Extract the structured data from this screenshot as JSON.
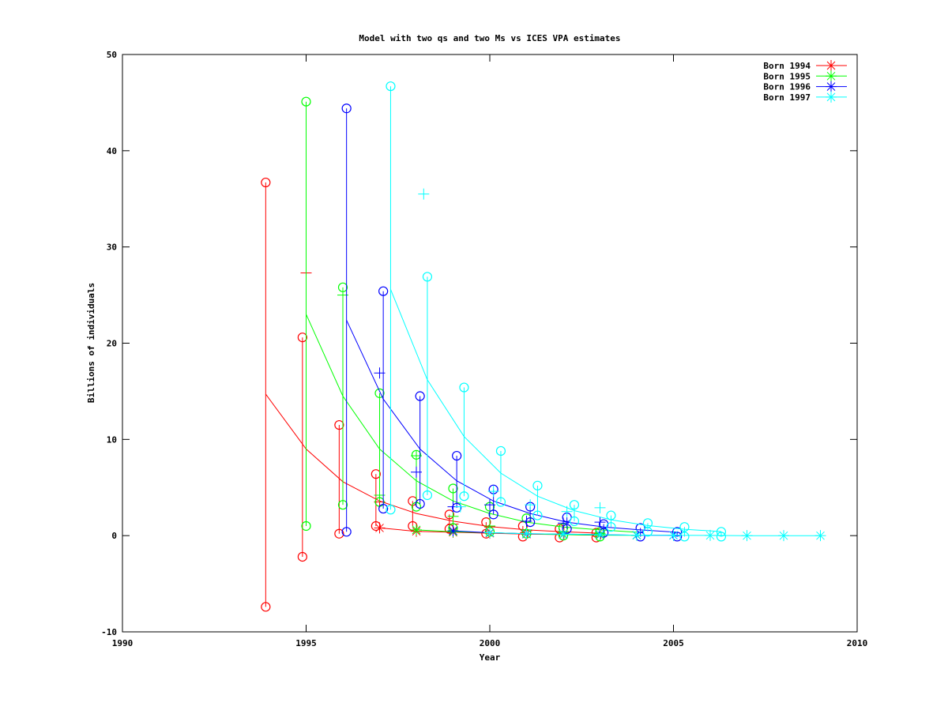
{
  "chart_data": {
    "type": "line",
    "title": "Model with two qs and two Ms vs ICES VPA estimates",
    "xlabel": "Year",
    "ylabel": "Billions of individuals",
    "xlim": [
      1990,
      2010
    ],
    "ylim": [
      -10,
      50
    ],
    "xticks": [
      1990,
      1995,
      2000,
      2005,
      2010
    ],
    "yticks": [
      -10,
      0,
      10,
      20,
      30,
      40,
      50
    ],
    "grid": false,
    "legend_position": "top-right",
    "series": [
      {
        "name": "Born 1994",
        "color": "#ff0000",
        "model": {
          "x": [
            1993.9,
            1995,
            1996,
            1997,
            1998,
            1999,
            2000,
            2001,
            2002,
            2003
          ],
          "y": [
            14.7,
            9.0,
            5.6,
            3.6,
            2.3,
            1.5,
            0.95,
            0.6,
            0.4,
            0.25
          ]
        },
        "asterisk_line": {
          "x": [
            1997,
            1998,
            1999,
            2000,
            2001,
            2002,
            2003
          ],
          "y": [
            0.8,
            0.45,
            0.35,
            0.25,
            0.15,
            0.1,
            0.05
          ]
        },
        "intervals": {
          "x": [
            1993.9,
            1994.9,
            1995.9,
            1996.9,
            1997.9,
            1998.9,
            1999.9,
            2000.9,
            2001.9,
            2002.9
          ],
          "low": [
            -7.4,
            -2.2,
            0.2,
            1.0,
            1.0,
            0.7,
            0.2,
            -0.1,
            -0.2,
            -0.2
          ],
          "high": [
            36.7,
            20.6,
            11.5,
            6.4,
            3.6,
            2.2,
            1.4,
            1.0,
            0.7,
            0.3
          ]
        },
        "vpa": {
          "x": [
            1995,
            1997,
            1999,
            2000,
            2001,
            2002
          ],
          "y": [
            27.3,
            3.5,
            1.2,
            0.9,
            0.5,
            0.4
          ]
        }
      },
      {
        "name": "Born 1995",
        "color": "#00ff00",
        "model": {
          "x": [
            1995,
            1996,
            1997,
            1998,
            1999,
            2000,
            2001,
            2002,
            2003,
            2004
          ],
          "y": [
            23.0,
            14.5,
            9.0,
            5.7,
            3.6,
            2.3,
            1.4,
            0.9,
            0.6,
            0.35
          ]
        },
        "asterisk_line": {
          "x": [
            1998,
            1999,
            2000,
            2001,
            2002,
            2003,
            2004
          ],
          "y": [
            0.6,
            0.4,
            0.3,
            0.2,
            0.1,
            0.05,
            0.03
          ]
        },
        "intervals": {
          "x": [
            1995,
            1996,
            1997,
            1998,
            1999,
            2000,
            2001,
            2002,
            2003
          ],
          "low": [
            1.0,
            3.2,
            3.5,
            3.0,
            0.8,
            0.4,
            0.2,
            0.0,
            -0.1
          ],
          "high": [
            45.1,
            25.8,
            14.8,
            8.4,
            4.9,
            3.0,
            1.8,
            0.8,
            0.4
          ]
        },
        "vpa": {
          "x": [
            1996,
            1997,
            1998,
            1999,
            2000,
            2001,
            2002,
            2003
          ],
          "y": [
            25.0,
            4.2,
            8.3,
            2.0,
            1.0,
            0.6,
            0.4,
            0.2
          ]
        }
      },
      {
        "name": "Born 1996",
        "color": "#0000ff",
        "model": {
          "x": [
            1996.1,
            1997.1,
            1998.1,
            1999.1,
            2000.1,
            2001.1,
            2002.1,
            2003.1,
            2004.1,
            2005.1
          ],
          "y": [
            22.4,
            14.2,
            9.0,
            5.7,
            3.6,
            2.3,
            1.4,
            0.9,
            0.6,
            0.35
          ]
        },
        "asterisk_line": {
          "x": [
            1999,
            2000,
            2001,
            2002,
            2003,
            2004,
            2005
          ],
          "y": [
            0.5,
            0.3,
            0.2,
            0.15,
            0.1,
            0.05,
            0.03
          ]
        },
        "intervals": {
          "x": [
            1996.1,
            1997.1,
            1998.1,
            1999.1,
            2000.1,
            2001.1,
            2002.1,
            2003.1,
            2004.1,
            2005.1
          ],
          "low": [
            0.4,
            2.8,
            3.3,
            2.9,
            2.2,
            1.4,
            0.7,
            0.3,
            -0.1,
            -0.1
          ],
          "high": [
            44.4,
            25.4,
            14.5,
            8.3,
            4.8,
            3.0,
            1.9,
            1.2,
            0.8,
            0.4
          ]
        },
        "vpa": {
          "x": [
            1997,
            1998,
            1999,
            2000,
            2001,
            2002,
            2003
          ],
          "y": [
            16.9,
            6.6,
            3.0,
            3.2,
            1.5,
            1.3,
            1.4
          ]
        }
      },
      {
        "name": "Born 1997",
        "color": "#00ffff",
        "model": {
          "x": [
            1997.3,
            1998.3,
            1999.3,
            2000.3,
            2001.3,
            2002.3,
            2003.3,
            2004.3,
            2005.3,
            2006.3
          ],
          "y": [
            25.6,
            16.2,
            10.3,
            6.5,
            4.1,
            2.6,
            1.65,
            1.05,
            0.66,
            0.42
          ]
        },
        "asterisk_line": {
          "x": [
            2000,
            2001,
            2002,
            2003,
            2004,
            2005,
            2006,
            2007,
            2008,
            2009
          ],
          "y": [
            0.3,
            0.2,
            0.15,
            0.1,
            0.05,
            0.03,
            0.02,
            0.0,
            0.0,
            0.0
          ]
        },
        "intervals": {
          "x": [
            1997.3,
            1998.3,
            1999.3,
            2000.3,
            2001.3,
            2002.3,
            2003.3,
            2004.3,
            2005.3,
            2006.3
          ],
          "low": [
            2.7,
            4.2,
            4.1,
            3.5,
            2.1,
            1.5,
            0.9,
            0.4,
            -0.1,
            -0.1
          ],
          "high": [
            46.7,
            26.9,
            15.4,
            8.8,
            5.2,
            3.2,
            2.1,
            1.3,
            0.9,
            0.4
          ]
        },
        "vpa": {
          "x": [
            1998.2,
            1999.2,
            2000.1,
            2001.1,
            2002.1,
            2003
          ],
          "y": [
            35.5,
            3.0,
            4.6,
            3.2,
            2.5,
            2.9
          ]
        }
      }
    ]
  }
}
